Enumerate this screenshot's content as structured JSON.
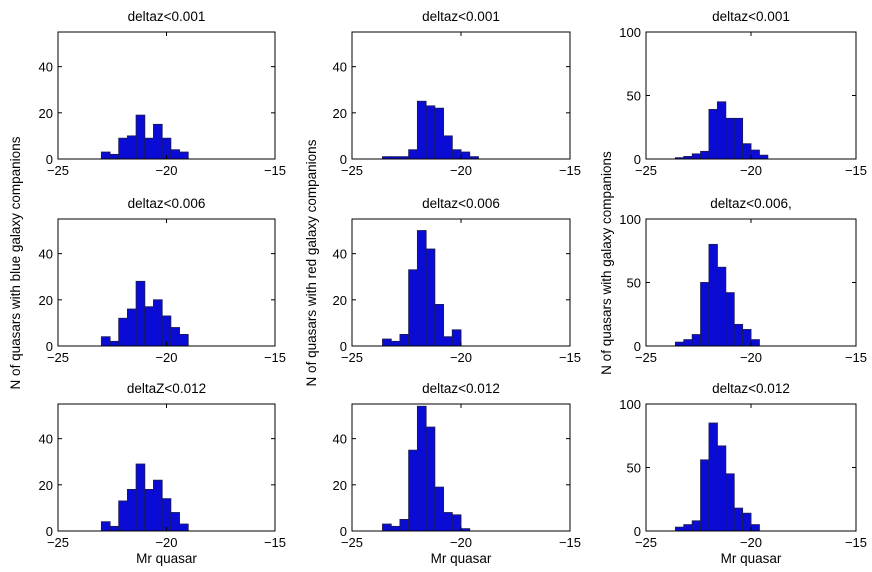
{
  "figure": {
    "ylabels": [
      "N of quasars with blue galaxy companions",
      "N of quasars with red galaxy companions",
      "N of quasars with galaxy companions"
    ],
    "xlabel": "Mr quasar"
  },
  "chart_data": [
    {
      "type": "bar",
      "title": "deltaz<0.001",
      "xlabel": "",
      "ylabel": "",
      "xlim": [
        -25,
        -15
      ],
      "ylim": [
        0,
        55
      ],
      "xticks": [
        -25,
        -20,
        -15
      ],
      "xtick_labels": [
        "−25",
        "−20",
        "−15"
      ],
      "yticks": [
        0,
        20,
        40
      ],
      "ytick_labels": [
        "0",
        "20",
        "40"
      ],
      "bin_width": 0.4,
      "bin_start": -23.0,
      "values": [
        3,
        2,
        9,
        10,
        19,
        9,
        15,
        9,
        4,
        3
      ]
    },
    {
      "type": "bar",
      "title": "deltaz<0.001",
      "xlabel": "",
      "ylabel": "",
      "xlim": [
        -25,
        -15
      ],
      "ylim": [
        0,
        55
      ],
      "xticks": [
        -25,
        -20,
        -15
      ],
      "xtick_labels": [
        "−25",
        "−20",
        "−15"
      ],
      "yticks": [
        0,
        20,
        40
      ],
      "ytick_labels": [
        "0",
        "20",
        "40"
      ],
      "bin_width": 0.4,
      "bin_start": -23.6,
      "values": [
        1,
        1,
        1,
        4,
        25,
        23,
        22,
        10,
        4,
        3,
        1
      ]
    },
    {
      "type": "bar",
      "title": "deltaz<0.001",
      "xlabel": "",
      "ylabel": "",
      "xlim": [
        -25,
        -15
      ],
      "ylim": [
        0,
        100
      ],
      "xticks": [
        -25,
        -20,
        -15
      ],
      "xtick_labels": [
        "−25",
        "−20",
        "−15"
      ],
      "yticks": [
        0,
        50,
        100
      ],
      "ytick_labels": [
        "0",
        "50",
        "100"
      ],
      "bin_width": 0.4,
      "bin_start": -23.6,
      "values": [
        1,
        2,
        4,
        6,
        39,
        45,
        32,
        32,
        12,
        7,
        3
      ]
    },
    {
      "type": "bar",
      "title": "deltaz<0.006",
      "xlabel": "",
      "ylabel": "",
      "xlim": [
        -25,
        -15
      ],
      "ylim": [
        0,
        55
      ],
      "xticks": [
        -25,
        -20,
        -15
      ],
      "xtick_labels": [
        "−25",
        "−20",
        "−15"
      ],
      "yticks": [
        0,
        20,
        40
      ],
      "ytick_labels": [
        "0",
        "20",
        "40"
      ],
      "bin_width": 0.4,
      "bin_start": -23.0,
      "values": [
        4,
        2,
        12,
        16,
        28,
        17,
        20,
        13,
        8,
        5
      ]
    },
    {
      "type": "bar",
      "title": "deltaz<0.006",
      "xlabel": "",
      "ylabel": "",
      "xlim": [
        -25,
        -15
      ],
      "ylim": [
        0,
        55
      ],
      "xticks": [
        -25,
        -20,
        -15
      ],
      "xtick_labels": [
        "−25",
        "−20",
        "−15"
      ],
      "yticks": [
        0,
        20,
        40
      ],
      "ytick_labels": [
        "0",
        "20",
        "40"
      ],
      "bin_width": 0.4,
      "bin_start": -23.6,
      "values": [
        3,
        2,
        5,
        33,
        50,
        42,
        18,
        4,
        7
      ]
    },
    {
      "type": "bar",
      "title": "deltaz<0.006,",
      "xlabel": "",
      "ylabel": "",
      "xlim": [
        -25,
        -15
      ],
      "ylim": [
        0,
        100
      ],
      "xticks": [
        -25,
        -20,
        -15
      ],
      "xtick_labels": [
        "−25",
        "−20",
        "−15"
      ],
      "yticks": [
        0,
        50,
        100
      ],
      "ytick_labels": [
        "0",
        "50",
        "100"
      ],
      "bin_width": 0.4,
      "bin_start": -23.6,
      "values": [
        3,
        5,
        9,
        50,
        80,
        62,
        42,
        17,
        13,
        5
      ]
    },
    {
      "type": "bar",
      "title": "deltaZ<0.012",
      "xlabel": "Mr quasar",
      "ylabel": "",
      "xlim": [
        -25,
        -15
      ],
      "ylim": [
        0,
        55
      ],
      "xticks": [
        -25,
        -20,
        -15
      ],
      "xtick_labels": [
        "−25",
        "−20",
        "−15"
      ],
      "yticks": [
        0,
        20,
        40
      ],
      "ytick_labels": [
        "0",
        "20",
        "40"
      ],
      "bin_width": 0.4,
      "bin_start": -23.0,
      "values": [
        4,
        2,
        13,
        18,
        29,
        18,
        22,
        14,
        8,
        3
      ]
    },
    {
      "type": "bar",
      "title": "deltaz<0.012",
      "xlabel": "Mr quasar",
      "ylabel": "",
      "xlim": [
        -25,
        -15
      ],
      "ylim": [
        0,
        55
      ],
      "xticks": [
        -25,
        -20,
        -15
      ],
      "xtick_labels": [
        "−25",
        "−20",
        "−15"
      ],
      "yticks": [
        0,
        20,
        40
      ],
      "ytick_labels": [
        "0",
        "20",
        "40"
      ],
      "bin_width": 0.4,
      "bin_start": -23.6,
      "values": [
        3,
        2,
        5,
        35,
        54,
        45,
        19,
        8,
        7,
        1
      ]
    },
    {
      "type": "bar",
      "title": "deltaz<0.012",
      "xlabel": "Mr quasar",
      "ylabel": "",
      "xlim": [
        -25,
        -15
      ],
      "ylim": [
        0,
        100
      ],
      "xticks": [
        -25,
        -20,
        -15
      ],
      "xtick_labels": [
        "−25",
        "−20",
        "−15"
      ],
      "yticks": [
        0,
        50,
        100
      ],
      "ytick_labels": [
        "0",
        "50",
        "100"
      ],
      "bin_width": 0.4,
      "bin_start": -23.6,
      "values": [
        3,
        5,
        8,
        56,
        85,
        67,
        45,
        18,
        14,
        5
      ]
    }
  ]
}
